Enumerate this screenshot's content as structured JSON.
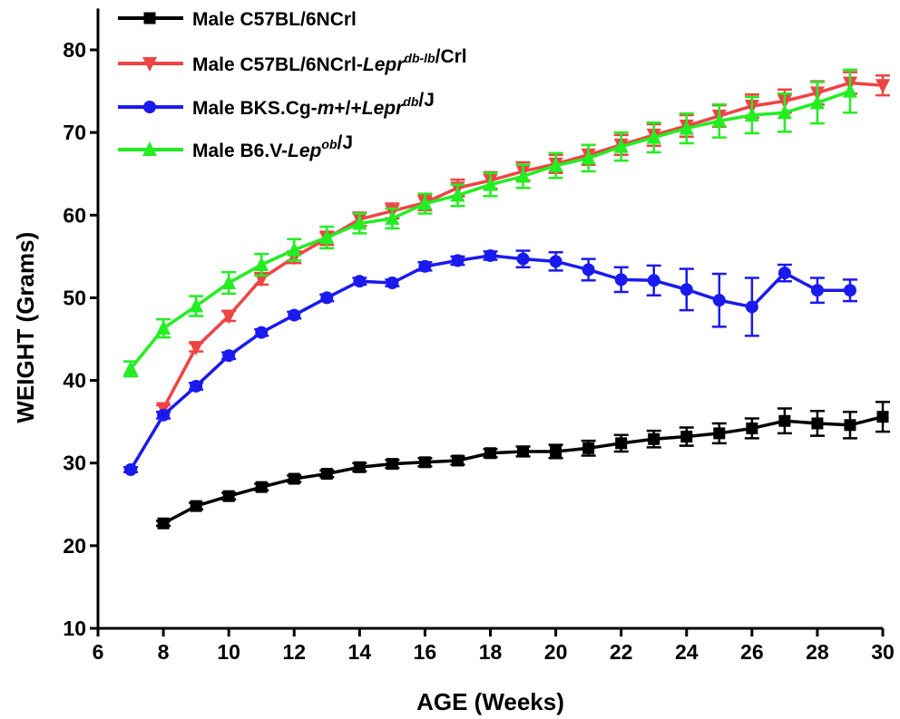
{
  "chart_data": {
    "type": "line",
    "xlabel": "AGE (Weeks)",
    "ylabel": "WEIGHT (Grams)",
    "xlim": [
      6,
      30
    ],
    "ylim": [
      10,
      85
    ],
    "xticks": [
      "6",
      "8",
      "10",
      "12",
      "14",
      "16",
      "18",
      "20",
      "22",
      "24",
      "26",
      "28",
      "30"
    ],
    "yticks": [
      "10",
      "20",
      "30",
      "40",
      "50",
      "60",
      "70",
      "80"
    ],
    "grid": false,
    "legend_position": "top-left",
    "series": [
      {
        "name": "Male C57BL/6NCrl",
        "legend_parts": [
          {
            "text": "Male C57BL/6NCrl",
            "style": "normal"
          }
        ],
        "color": "#000000",
        "marker": "square",
        "x": [
          8,
          9,
          10,
          11,
          12,
          13,
          14,
          15,
          16,
          17,
          18,
          19,
          20,
          21,
          22,
          23,
          24,
          25,
          26,
          27,
          28,
          29,
          30
        ],
        "y": [
          22.7,
          24.8,
          26.0,
          27.1,
          28.1,
          28.7,
          29.5,
          29.9,
          30.1,
          30.3,
          31.2,
          31.4,
          31.4,
          31.8,
          32.4,
          32.9,
          33.2,
          33.6,
          34.2,
          35.1,
          34.8,
          34.6,
          35.6
        ],
        "err": [
          0.3,
          0.4,
          0.4,
          0.4,
          0.4,
          0.4,
          0.5,
          0.5,
          0.5,
          0.5,
          0.5,
          0.6,
          0.8,
          0.9,
          1.0,
          1.0,
          1.1,
          1.2,
          1.2,
          1.5,
          1.5,
          1.6,
          1.8
        ]
      },
      {
        "name": "Male C57BL/6NCrl-Lepr db-lb /Crl",
        "legend_parts": [
          {
            "text": "Male C57BL/6NCrl-",
            "style": "normal"
          },
          {
            "text": "Lepr",
            "style": "italic"
          },
          {
            "text": "db-lb",
            "style": "italic-sup"
          },
          {
            "text": "/Crl",
            "style": "normal"
          }
        ],
        "color": "#ee4444",
        "marker": "triangle-down",
        "x": [
          8,
          9,
          10,
          11,
          12,
          13,
          14,
          15,
          16,
          17,
          18,
          19,
          20,
          21,
          22,
          23,
          24,
          25,
          26,
          27,
          28,
          29,
          30
        ],
        "y": [
          36.6,
          44.0,
          47.8,
          52.3,
          54.9,
          57.2,
          59.5,
          60.5,
          61.5,
          63.3,
          64.2,
          65.3,
          66.2,
          67.3,
          68.5,
          69.7,
          70.8,
          72.0,
          73.2,
          73.8,
          74.8,
          76.0,
          75.7
        ],
        "err": [
          0.4,
          0.5,
          0.6,
          0.7,
          0.7,
          0.8,
          0.8,
          0.9,
          0.9,
          1.0,
          1.0,
          1.1,
          1.1,
          1.2,
          1.2,
          1.3,
          1.3,
          1.3,
          1.4,
          1.4,
          1.4,
          1.3,
          1.2
        ]
      },
      {
        "name": "Male BKS.Cg-m+/+Lepr db /J",
        "legend_parts": [
          {
            "text": "Male BKS.Cg-",
            "style": "normal"
          },
          {
            "text": "m",
            "style": "italic"
          },
          {
            "text": "+/+",
            "style": "normal"
          },
          {
            "text": "Lepr",
            "style": "italic"
          },
          {
            "text": "db",
            "style": "italic-sup"
          },
          {
            "text": "/J",
            "style": "normal"
          }
        ],
        "color": "#1a1aee",
        "marker": "circle",
        "x": [
          7,
          8,
          9,
          10,
          11,
          12,
          13,
          14,
          15,
          16,
          17,
          18,
          19,
          20,
          21,
          22,
          23,
          24,
          25,
          26,
          27,
          28,
          29
        ],
        "y": [
          29.2,
          35.8,
          39.3,
          43.0,
          45.8,
          47.9,
          50.0,
          52.0,
          51.8,
          53.8,
          54.5,
          55.1,
          54.7,
          54.4,
          53.4,
          52.2,
          52.1,
          51.0,
          49.7,
          48.9,
          53.0,
          50.9,
          50.9
        ],
        "err": [
          0.3,
          0.4,
          0.4,
          0.4,
          0.4,
          0.4,
          0.4,
          0.4,
          0.4,
          0.5,
          0.5,
          0.5,
          1.0,
          1.1,
          1.3,
          1.5,
          1.8,
          2.5,
          3.2,
          3.5,
          1.0,
          1.5,
          1.3
        ]
      },
      {
        "name": "Male B6.V-Lep ob /J",
        "legend_parts": [
          {
            "text": "Male B6.V-",
            "style": "normal"
          },
          {
            "text": "Lep",
            "style": "italic"
          },
          {
            "text": "ob",
            "style": "italic-sup"
          },
          {
            "text": "/J",
            "style": "normal"
          }
        ],
        "color": "#22ee22",
        "marker": "triangle-up",
        "x": [
          7,
          8,
          9,
          10,
          11,
          12,
          13,
          14,
          15,
          16,
          17,
          18,
          19,
          20,
          21,
          22,
          23,
          24,
          25,
          26,
          27,
          28,
          29
        ],
        "y": [
          41.4,
          46.3,
          49.0,
          51.8,
          54.0,
          55.8,
          57.3,
          59.0,
          59.6,
          61.4,
          62.4,
          63.7,
          64.7,
          66.0,
          66.9,
          68.3,
          69.4,
          70.5,
          71.4,
          72.1,
          72.4,
          73.6,
          75.0
        ],
        "err": [
          0.9,
          1.1,
          1.2,
          1.3,
          1.3,
          1.3,
          1.3,
          1.2,
          1.2,
          1.2,
          1.3,
          1.4,
          1.4,
          1.5,
          1.6,
          1.7,
          1.8,
          1.8,
          2.0,
          2.2,
          2.3,
          2.5,
          2.6
        ]
      }
    ]
  }
}
